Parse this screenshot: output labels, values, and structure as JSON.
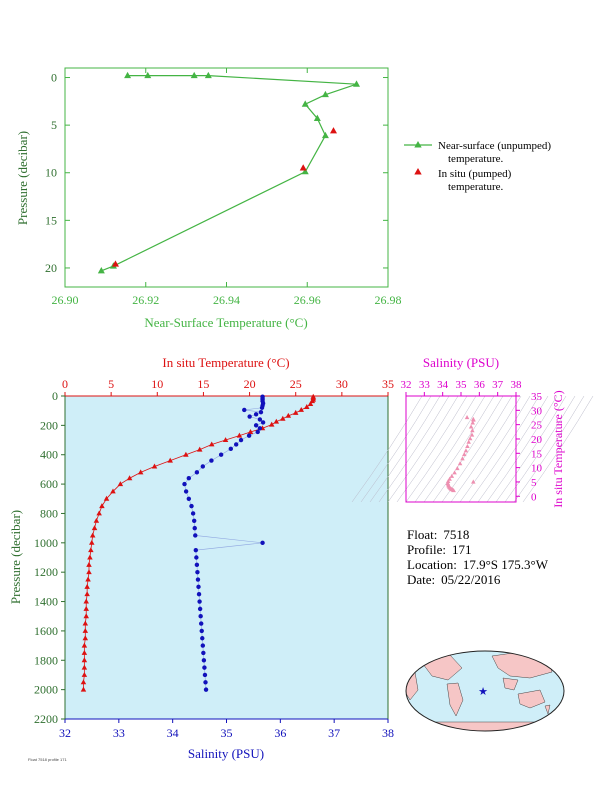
{
  "info": {
    "float_label": "Float:",
    "float_value": "7518",
    "profile_label": "Profile:",
    "profile_value": "171",
    "location_label": "Location:",
    "location_value": "17.9°S  175.3°W",
    "date_label": "Date:",
    "date_value": "05/22/2016"
  },
  "footer_text": "Float 7518 profile 171",
  "colors": {
    "green": "#44b444",
    "red": "#dd1111",
    "blue": "#1111bb",
    "magenta": "#dd00cc",
    "axis_dark_green": "#2f6f2f",
    "panel_bg": "#cfeef8",
    "map_ocean": "#cfeef8",
    "map_land": "#f6c6c6"
  },
  "chart_data": [
    {
      "id": "near-surface",
      "type": "line",
      "xlabel": "Near-Surface Temperature (°C)",
      "ylabel": "Pressure (decibar)",
      "xlim": [
        26.9,
        26.98
      ],
      "ylim": [
        22,
        -1
      ],
      "x_ticks": [
        "26.90",
        "26.92",
        "26.94",
        "26.96",
        "26.98"
      ],
      "y_ticks": [
        "0",
        "5",
        "10",
        "15",
        "20"
      ],
      "series": [
        {
          "name": "Near-surface (unpumped) temperature.",
          "marker": "triangle",
          "points": [
            [
              26.9155,
              -0.2
            ],
            [
              26.9205,
              -0.2
            ],
            [
              26.932,
              -0.2
            ],
            [
              26.9355,
              -0.2
            ],
            [
              26.9722,
              0.7
            ],
            [
              26.9645,
              1.8
            ],
            [
              26.9595,
              2.8
            ],
            [
              26.9625,
              4.3
            ],
            [
              26.9645,
              6.1
            ],
            [
              26.9595,
              9.9
            ],
            [
              26.912,
              19.8
            ],
            [
              26.909,
              20.3
            ]
          ]
        },
        {
          "name": "In situ (pumped) temperature.",
          "marker": "triangle",
          "points": [
            [
              26.9665,
              5.6
            ],
            [
              26.959,
              9.5
            ],
            [
              26.9125,
              19.6
            ]
          ]
        }
      ],
      "legend": [
        {
          "line1": "Near-surface (unpumped)",
          "line2": "temperature."
        },
        {
          "line1": "In situ (pumped)",
          "line2": "temperature."
        }
      ]
    },
    {
      "id": "profile",
      "type": "line",
      "top_xlabel": "In situ Temperature (°C)",
      "bottom_xlabel": "Salinity (PSU)",
      "ylabel": "Pressure (decibar)",
      "temp_lim": [
        0,
        35
      ],
      "sal_lim": [
        32,
        38
      ],
      "pres_lim": [
        0,
        2200
      ],
      "temp_ticks": [
        "0",
        "5",
        "10",
        "15",
        "20",
        "25",
        "30",
        "35"
      ],
      "sal_ticks": [
        "32",
        "33",
        "34",
        "35",
        "36",
        "37",
        "38"
      ],
      "pres_ticks": [
        "0",
        "200",
        "400",
        "600",
        "800",
        "1000",
        "1200",
        "1400",
        "1600",
        "1800",
        "2000",
        "2200"
      ],
      "temperature": [
        [
          26.9,
          5
        ],
        [
          26.9,
          15
        ],
        [
          26.9,
          25
        ],
        [
          26.8,
          35
        ],
        [
          26.6,
          55
        ],
        [
          26.2,
          75
        ],
        [
          25.6,
          95
        ],
        [
          25.0,
          115
        ],
        [
          24.2,
          135
        ],
        [
          23.6,
          155
        ],
        [
          22.9,
          175
        ],
        [
          22.4,
          195
        ],
        [
          21.4,
          220
        ],
        [
          20.1,
          245
        ],
        [
          18.9,
          270
        ],
        [
          17.4,
          300
        ],
        [
          15.9,
          330
        ],
        [
          14.6,
          365
        ],
        [
          13.1,
          400
        ],
        [
          11.4,
          440
        ],
        [
          9.7,
          480
        ],
        [
          8.2,
          520
        ],
        [
          7.0,
          560
        ],
        [
          6.0,
          600
        ],
        [
          5.2,
          650
        ],
        [
          4.5,
          700
        ],
        [
          4.0,
          750
        ],
        [
          3.7,
          800
        ],
        [
          3.4,
          850
        ],
        [
          3.2,
          900
        ],
        [
          3.0,
          950
        ],
        [
          2.9,
          1000
        ],
        [
          2.8,
          1050
        ],
        [
          2.7,
          1100
        ],
        [
          2.6,
          1150
        ],
        [
          2.6,
          1200
        ],
        [
          2.5,
          1250
        ],
        [
          2.4,
          1300
        ],
        [
          2.4,
          1350
        ],
        [
          2.3,
          1400
        ],
        [
          2.3,
          1450
        ],
        [
          2.3,
          1500
        ],
        [
          2.2,
          1550
        ],
        [
          2.2,
          1600
        ],
        [
          2.2,
          1650
        ],
        [
          2.1,
          1700
        ],
        [
          2.1,
          1750
        ],
        [
          2.1,
          1800
        ],
        [
          2.1,
          1850
        ],
        [
          2.1,
          1900
        ],
        [
          2.0,
          1950
        ],
        [
          2.0,
          2000
        ]
      ],
      "salinity": [
        [
          35.67,
          5
        ],
        [
          35.67,
          15
        ],
        [
          35.67,
          25
        ],
        [
          35.67,
          35
        ],
        [
          35.68,
          50
        ],
        [
          35.67,
          65
        ],
        [
          35.66,
          80
        ],
        [
          35.33,
          95
        ],
        [
          35.64,
          110
        ],
        [
          35.55,
          125
        ],
        [
          35.43,
          140
        ],
        [
          35.62,
          160
        ],
        [
          35.68,
          180
        ],
        [
          35.55,
          200
        ],
        [
          35.62,
          220
        ],
        [
          35.58,
          245
        ],
        [
          35.42,
          270
        ],
        [
          35.27,
          300
        ],
        [
          35.18,
          330
        ],
        [
          35.08,
          360
        ],
        [
          34.9,
          400
        ],
        [
          34.72,
          440
        ],
        [
          34.56,
          480
        ],
        [
          34.45,
          520
        ],
        [
          34.3,
          560
        ],
        [
          34.22,
          600
        ],
        [
          34.25,
          650
        ],
        [
          34.3,
          700
        ],
        [
          34.35,
          750
        ],
        [
          34.38,
          800
        ],
        [
          34.4,
          850
        ],
        [
          34.41,
          900
        ],
        [
          34.42,
          950
        ],
        [
          35.67,
          1000
        ],
        [
          34.43,
          1050
        ],
        [
          34.44,
          1100
        ],
        [
          34.45,
          1150
        ],
        [
          34.46,
          1200
        ],
        [
          34.47,
          1250
        ],
        [
          34.48,
          1300
        ],
        [
          34.49,
          1350
        ],
        [
          34.5,
          1400
        ],
        [
          34.51,
          1450
        ],
        [
          34.52,
          1500
        ],
        [
          34.53,
          1550
        ],
        [
          34.54,
          1600
        ],
        [
          34.55,
          1650
        ],
        [
          34.56,
          1700
        ],
        [
          34.57,
          1750
        ],
        [
          34.58,
          1800
        ],
        [
          34.59,
          1850
        ],
        [
          34.6,
          1900
        ],
        [
          34.61,
          1950
        ],
        [
          34.62,
          2000
        ]
      ]
    },
    {
      "id": "ts-diagram",
      "type": "scatter",
      "xlabel": "Salinity (PSU)",
      "ylabel": "In situ Temperature (°C)",
      "xlim": [
        32,
        38
      ],
      "ylim": [
        -2,
        35
      ],
      "x_ticks": [
        "32",
        "33",
        "34",
        "35",
        "36",
        "37",
        "38"
      ],
      "y_ticks": [
        "0",
        "5",
        "10",
        "15",
        "20",
        "25",
        "30",
        "35"
      ],
      "points": [
        [
          35.67,
          26.9
        ],
        [
          35.68,
          26.6
        ],
        [
          35.64,
          25.6
        ],
        [
          35.55,
          24.2
        ],
        [
          35.62,
          22.9
        ],
        [
          35.6,
          21.4
        ],
        [
          35.5,
          20.1
        ],
        [
          35.42,
          18.9
        ],
        [
          35.35,
          17.4
        ],
        [
          35.27,
          15.9
        ],
        [
          35.18,
          14.6
        ],
        [
          35.08,
          13.1
        ],
        [
          34.95,
          11.4
        ],
        [
          34.8,
          9.7
        ],
        [
          34.65,
          8.2
        ],
        [
          34.5,
          7.0
        ],
        [
          34.38,
          6.0
        ],
        [
          34.3,
          5.2
        ],
        [
          34.28,
          4.5
        ],
        [
          34.3,
          4.0
        ],
        [
          34.33,
          3.6
        ],
        [
          34.36,
          3.2
        ],
        [
          34.4,
          2.9
        ],
        [
          34.45,
          2.6
        ],
        [
          34.5,
          2.4
        ],
        [
          34.55,
          2.2
        ],
        [
          34.6,
          2.0
        ],
        [
          35.67,
          5.0
        ],
        [
          35.33,
          27.5
        ]
      ]
    }
  ]
}
